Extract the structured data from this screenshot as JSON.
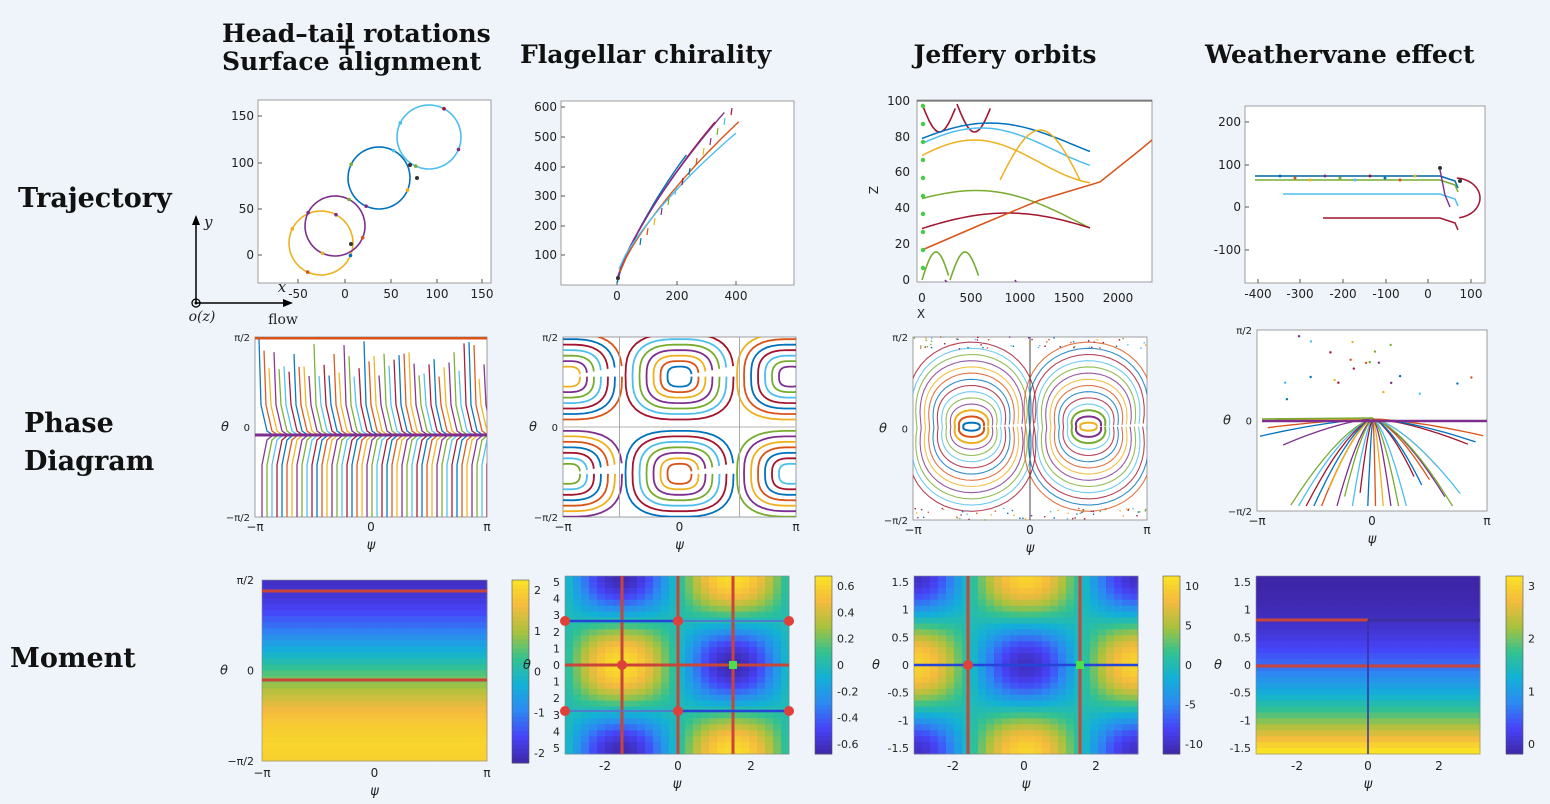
{
  "column_titles": [
    {
      "line1": "Head–tail rotations",
      "plus": "+",
      "line2": "Surface alignment"
    },
    {
      "line1": "Flagellar chirality"
    },
    {
      "line1": "Jeffery orbits"
    },
    {
      "line1": "Weathervane effect"
    }
  ],
  "row_labels": {
    "trajectory": "Trajectory",
    "phase_line1": "Phase",
    "phase_line2": "Diagram",
    "moment": "Moment"
  },
  "axes_inset": {
    "y": "y",
    "x": "x",
    "origin": "o(z)",
    "flow": "flow"
  },
  "series_colors": [
    "#0072bd",
    "#d95319",
    "#edb120",
    "#7e2f8e",
    "#77ac30",
    "#4dbeee",
    "#a2142f"
  ],
  "colormap": [
    "#3e26a8",
    "#4743f8",
    "#2d89f2",
    "#12b1d6",
    "#34c28f",
    "#a9c23e",
    "#f5ba3e",
    "#f9e224"
  ],
  "chart_data": [
    {
      "id": "traj1",
      "type": "line",
      "title": "",
      "xlabel": "",
      "ylabel": "",
      "xlim": [
        -95,
        155
      ],
      "ylim": [
        -28,
        170
      ],
      "xticks": [
        "-50",
        "0",
        "50",
        "100",
        "150"
      ],
      "yticks": [
        "0",
        "50",
        "100",
        "150"
      ]
    },
    {
      "id": "traj2",
      "type": "line",
      "title": "",
      "xlabel": "",
      "ylabel": "",
      "xlim": [
        -170,
        510
      ],
      "ylim": [
        20,
        610
      ],
      "xticks": [
        "0",
        "200",
        "400"
      ],
      "yticks": [
        "100",
        "200",
        "300",
        "400",
        "500",
        "600"
      ]
    },
    {
      "id": "traj3",
      "type": "line",
      "title": "",
      "xlabel": "X",
      "ylabel": "Z",
      "xlim": [
        -50,
        2350
      ],
      "ylim": [
        0,
        100
      ],
      "xticks": [
        "0",
        "500",
        "1000",
        "1500",
        "2000"
      ],
      "yticks": [
        "0",
        "20",
        "40",
        "60",
        "80",
        "100"
      ]
    },
    {
      "id": "traj4",
      "type": "line",
      "title": "",
      "xlabel": "",
      "ylabel": "",
      "xlim": [
        -420,
        120
      ],
      "ylim": [
        -150,
        230
      ],
      "xticks": [
        "-400",
        "-300",
        "-200",
        "-100",
        "0",
        "100"
      ],
      "yticks": [
        "-100",
        "0",
        "100",
        "200"
      ]
    },
    {
      "id": "phase1",
      "type": "line",
      "xlabel": "ψ",
      "ylabel": "θ",
      "xlim": [
        "-π",
        "π"
      ],
      "ylim": [
        "-π/2",
        "π/2"
      ],
      "xticks": [
        "−π",
        "0",
        "π"
      ],
      "yticks": [
        "−π/2",
        "0",
        "π/2"
      ]
    },
    {
      "id": "phase2",
      "type": "line",
      "xlabel": "ψ",
      "ylabel": "θ",
      "xlim": [
        "-π",
        "π"
      ],
      "ylim": [
        "-π/2",
        "π/2"
      ],
      "xticks": [
        "−π",
        "0",
        "π"
      ],
      "yticks": [
        "−π/2",
        "0",
        "π/2"
      ]
    },
    {
      "id": "phase3",
      "type": "line",
      "xlabel": "ψ",
      "ylabel": "θ",
      "xlim": [
        "-π",
        "π"
      ],
      "ylim": [
        "-π/2",
        "π/2"
      ],
      "xticks": [
        "−π",
        "0",
        "π"
      ],
      "yticks": [
        "−π/2",
        "0",
        "π/2"
      ]
    },
    {
      "id": "phase4",
      "type": "line",
      "xlabel": "ψ",
      "ylabel": "θ",
      "xlim": [
        "-π",
        "π"
      ],
      "ylim": [
        "-π/2",
        "π/2"
      ],
      "xticks": [
        "−π",
        "0",
        "π"
      ],
      "yticks": [
        "−π/2",
        "0",
        "π/2"
      ]
    },
    {
      "id": "moment1",
      "type": "heatmap",
      "xlabel": "ψ",
      "ylabel": "θ",
      "xticks": [
        "−π",
        "0",
        "π"
      ],
      "yticks": [
        "−π/2",
        "0",
        "π/2"
      ],
      "colorbar_ticks": [
        "2",
        "1",
        "0",
        "-1",
        "-2"
      ]
    },
    {
      "id": "moment2",
      "type": "heatmap",
      "xlabel": "ψ",
      "ylabel": "θ",
      "xticks": [
        "-2",
        "0",
        "2"
      ],
      "yticks": [
        "5",
        "4",
        "3",
        "2",
        "1",
        "0",
        "1",
        "2",
        "3",
        "4",
        "5"
      ],
      "colorbar_ticks": [
        "0.6",
        "0.4",
        "0.2",
        "0",
        "-0.2",
        "-0.4",
        "-0.6"
      ]
    },
    {
      "id": "moment3",
      "type": "heatmap",
      "xlabel": "ψ",
      "ylabel": "θ",
      "xticks": [
        "-2",
        "0",
        "2"
      ],
      "yticks": [
        "1.5",
        "1",
        "0.5",
        "0",
        "-0.5",
        "-1",
        "-1.5"
      ],
      "colorbar_ticks": [
        "10",
        "5",
        "0",
        "-5",
        "-10"
      ]
    },
    {
      "id": "moment4",
      "type": "heatmap",
      "xlabel": "ψ",
      "ylabel": "θ",
      "xticks": [
        "-2",
        "0",
        "2"
      ],
      "yticks": [
        "1.5",
        "1",
        "0.5",
        "0",
        "-0.5",
        "-1",
        "-1.5"
      ],
      "colorbar_ticks": [
        "3",
        "2",
        "1",
        "0"
      ]
    }
  ]
}
